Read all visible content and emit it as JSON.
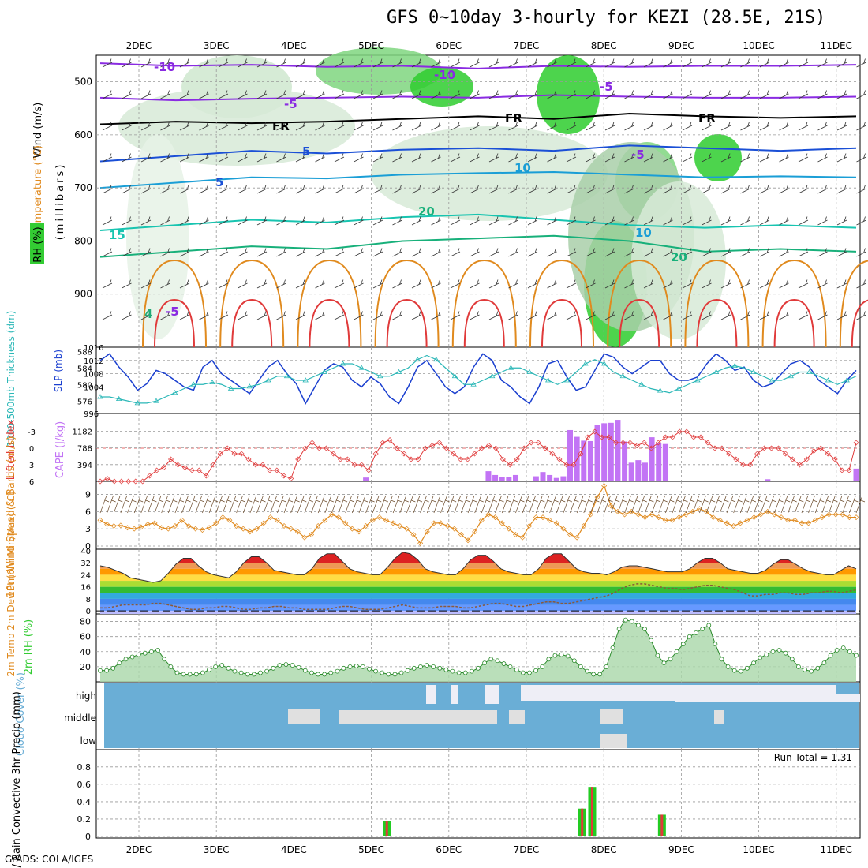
{
  "title": "GFS 0~10day 3-hourly for KEZI (28.5E, 21S)",
  "footer": "GrADS: COLA/IGES",
  "colors": {
    "rh_green": "#33cc33",
    "temp_orange": "#e08a1e",
    "slp_blue": "#1a3fcf",
    "thickness_cyan": "#2ab7b7",
    "cape_purple": "#c274f5",
    "lifted_red": "#e03a3a",
    "wind_orange": "#e08a1e",
    "cloud_blue": "#6aaed6",
    "precip_green": "#22cc22",
    "precip_red": "#e03a3a"
  },
  "chart_data": [
    {
      "type": "heatmap",
      "panel": "upper-air",
      "ylabels": [
        "Wind (m/s)",
        "Temperature (°C)",
        "RH (%)",
        "(millibars)"
      ],
      "yticks": [
        500,
        600,
        700,
        800,
        900
      ],
      "ylim": [
        1000,
        450
      ],
      "x_top_labels": [
        "2DEC",
        "3DEC",
        "4DEC",
        "5DEC",
        "6DEC",
        "7DEC",
        "8DEC",
        "9DEC",
        "10DEC",
        "11DEC"
      ],
      "contour_labels": [
        "-10",
        "-10",
        "-5",
        "FR",
        "FR",
        "FR",
        "-5",
        "5",
        "-5",
        "10",
        "5",
        "10",
        "15",
        "20",
        "20",
        "-5",
        "4"
      ],
      "isotherms": [
        {
          "label": "-10",
          "p": [
            465,
            470,
            468,
            472,
            470,
            475,
            470,
            472,
            470,
            470,
            468
          ]
        },
        {
          "label": "-5",
          "p": [
            530,
            535,
            532,
            530,
            528,
            530,
            525,
            528,
            530,
            530,
            528
          ]
        },
        {
          "label": "FR",
          "p": [
            580,
            575,
            578,
            575,
            570,
            565,
            570,
            560,
            565,
            568,
            565
          ]
        },
        {
          "label": "5",
          "p": [
            650,
            640,
            630,
            635,
            628,
            625,
            630,
            620,
            625,
            630,
            625
          ]
        },
        {
          "label": "10",
          "p": [
            700,
            690,
            680,
            682,
            675,
            672,
            670,
            675,
            680,
            678,
            680
          ]
        },
        {
          "label": "15",
          "p": [
            780,
            770,
            760,
            765,
            755,
            750,
            760,
            770,
            775,
            770,
            775
          ]
        },
        {
          "label": "20",
          "p": [
            830,
            820,
            810,
            815,
            800,
            795,
            790,
            800,
            820,
            815,
            820
          ]
        }
      ]
    },
    {
      "type": "line",
      "panel": "slp-thickness",
      "ylabel_left": "1000-500mb Thickness (dm)",
      "ylabel_right": "SLP (mb)",
      "yticks_left": [
        576,
        580,
        584,
        588
      ],
      "yticks_right": [
        996,
        1004,
        1008,
        1012,
        1016
      ],
      "series": [
        {
          "name": "SLP (mb)",
          "values": [
            1012,
            1014,
            1010,
            1007,
            1003,
            1005,
            1009,
            1008,
            1006,
            1004,
            1003,
            1010,
            1012,
            1008,
            1006,
            1004,
            1002,
            1006,
            1010,
            1012,
            1008,
            1005,
            999,
            1004,
            1009,
            1011,
            1010,
            1006,
            1004,
            1007,
            1005,
            1001,
            999,
            1004,
            1010,
            1012,
            1008,
            1004,
            1002,
            1004,
            1010,
            1014,
            1012,
            1006,
            1004,
            1001,
            999,
            1004,
            1011,
            1012,
            1007,
            1003,
            1004,
            1009,
            1014,
            1013,
            1010,
            1008,
            1010,
            1012,
            1012,
            1008,
            1006,
            1006,
            1007,
            1011,
            1014,
            1012,
            1009,
            1010,
            1006,
            1004,
            1005,
            1008,
            1011,
            1012,
            1010,
            1006,
            1004,
            1002,
            1006,
            1009
          ]
        },
        {
          "name": "Thickness (dm)",
          "values": [
            577,
            577,
            576.5,
            576,
            575.5,
            575.5,
            576,
            577,
            578,
            579,
            580,
            580,
            580.5,
            580,
            579,
            579,
            579.5,
            580,
            581,
            582,
            582,
            581,
            581,
            582,
            583,
            584,
            585,
            585,
            584,
            583,
            582,
            582,
            583,
            584,
            586,
            587,
            586,
            584,
            582,
            580,
            580,
            581,
            582,
            583,
            584,
            584,
            583,
            582,
            581,
            580,
            581,
            583,
            585,
            586,
            585,
            583,
            582,
            581,
            580,
            579,
            578.5,
            578,
            579,
            580,
            581,
            582,
            583,
            584,
            584.5,
            584,
            583,
            582,
            581,
            581,
            582,
            583,
            583,
            582,
            581,
            580,
            581,
            582
          ]
        }
      ]
    },
    {
      "type": "bar",
      "panel": "cape-li",
      "ylabel_left": "Lifted Index",
      "ylabel_right": "CAPE (J/kg)",
      "yticks_left": [
        -3,
        0,
        3,
        6
      ],
      "yticks_right": [
        394,
        788,
        1182
      ],
      "series": [
        {
          "name": "CAPE (J/kg)",
          "values": [
            20,
            0,
            0,
            0,
            0,
            0,
            0,
            0,
            0,
            0,
            0,
            0,
            0,
            0,
            0,
            0,
            0,
            0,
            0,
            0,
            0,
            0,
            0,
            0,
            0,
            0,
            0,
            0,
            0,
            0,
            0,
            0,
            0,
            0,
            0,
            0,
            0,
            0,
            0,
            90,
            0,
            0,
            0,
            0,
            0,
            0,
            0,
            0,
            0,
            0,
            0,
            0,
            0,
            0,
            0,
            0,
            0,
            240,
            150,
            100,
            100,
            150,
            0,
            0,
            120,
            220,
            150,
            80,
            120,
            1210,
            1050,
            960,
            950,
            1330,
            1370,
            1380,
            1450,
            940,
            440,
            500,
            440,
            1040,
            910,
            880,
            0,
            0,
            0,
            0,
            0,
            0,
            0,
            0,
            0,
            0,
            0,
            0,
            0,
            0,
            50,
            0,
            0,
            0,
            0,
            0,
            0,
            0,
            0,
            0,
            0,
            0,
            0,
            300
          ]
        },
        {
          "name": "Lifted Index",
          "values": [
            6,
            5.5,
            6,
            6,
            6,
            6,
            6,
            5,
            4,
            3.5,
            2,
            3,
            3.5,
            4,
            4,
            5,
            3,
            1,
            0,
            1,
            1,
            2,
            3,
            3,
            4,
            4,
            5,
            5.5,
            2,
            0,
            -1,
            0,
            0,
            1,
            2,
            2,
            3,
            3,
            4,
            1,
            -1,
            -1.5,
            0,
            1,
            2,
            2,
            0,
            -0.5,
            -1,
            0,
            1,
            2,
            2,
            1,
            0,
            -0.5,
            0,
            2,
            3,
            2,
            0,
            -1,
            -1,
            0,
            1,
            2,
            3,
            3,
            1,
            -2,
            -3,
            -2,
            -2,
            -1,
            -1,
            -1,
            -0.5,
            -1,
            0,
            -1,
            -2,
            -2,
            -3,
            -3,
            -2,
            -2,
            -1,
            0,
            0,
            1,
            2,
            3,
            3,
            1,
            0,
            0,
            0,
            1,
            2,
            3,
            2,
            0.5,
            0,
            1,
            2,
            4,
            4,
            -1
          ]
        }
      ]
    },
    {
      "type": "line",
      "panel": "wind10m",
      "ylabel": "10m Wind Speed & Barbs (m/s)",
      "yticks": [
        0,
        3,
        6,
        9
      ],
      "ylim": [
        0,
        11
      ],
      "series": [
        {
          "name": "10m Wind Speed",
          "values": [
            4.5,
            3.8,
            3.5,
            3.6,
            3.2,
            3.0,
            3.3,
            3.8,
            4.0,
            3.2,
            3.0,
            3.5,
            4.5,
            3.5,
            3.0,
            2.8,
            3.2,
            4.0,
            5.0,
            4.5,
            3.5,
            3.0,
            2.5,
            3.0,
            4.0,
            5.0,
            4.5,
            3.5,
            3.0,
            2.5,
            1.5,
            2.0,
            3.5,
            4.5,
            5.5,
            5.0,
            4.0,
            3.0,
            2.5,
            3.5,
            4.5,
            5.0,
            4.5,
            4.0,
            3.5,
            3.0,
            2.0,
            0.5,
            2.5,
            4.0,
            4.0,
            3.5,
            3.0,
            2.0,
            1.0,
            2.5,
            4.5,
            5.5,
            5.0,
            4.0,
            3.0,
            2.0,
            1.5,
            3.5,
            5.0,
            5.0,
            4.5,
            4.0,
            3.0,
            2.0,
            1.5,
            3.5,
            5.5,
            8.5,
            10.5,
            7.0,
            6.0,
            5.5,
            6.0,
            5.5,
            5.0,
            5.5,
            5.0,
            4.5,
            4.5,
            5.0,
            5.5,
            6.0,
            6.5,
            6.0,
            5.0,
            4.5,
            4.0,
            3.5,
            4.0,
            4.5,
            5.0,
            5.5,
            6.0,
            5.5,
            5.0,
            4.5,
            4.5,
            4.0,
            4.0,
            4.5,
            5.0,
            5.5,
            5.5,
            5.5,
            5.0,
            5.0
          ]
        }
      ]
    },
    {
      "type": "area",
      "panel": "temp2m",
      "ylabel": "2m Temp 2m DewPt (6hr Min/Max) (°C)",
      "yticks": [
        0,
        8,
        16,
        24,
        32,
        40
      ],
      "ylim": [
        -2,
        41
      ],
      "series": [
        {
          "name": "2m Temp",
          "values": [
            30,
            29,
            27,
            25,
            22,
            21,
            20,
            19,
            20,
            25,
            31,
            35,
            35,
            30,
            26,
            24,
            23,
            22,
            26,
            32,
            36,
            36,
            32,
            27,
            26,
            25,
            24,
            24,
            28,
            35,
            38,
            38,
            33,
            28,
            26,
            25,
            24,
            24,
            29,
            35,
            39,
            38,
            34,
            28,
            26,
            25,
            24,
            24,
            28,
            34,
            37,
            37,
            33,
            28,
            26,
            25,
            24,
            24,
            28,
            35,
            38,
            38,
            33,
            28,
            26,
            25,
            25,
            24,
            26,
            29,
            30,
            30,
            29,
            28,
            27,
            26,
            26,
            26,
            28,
            32,
            35,
            35,
            32,
            28,
            27,
            26,
            25,
            25,
            27,
            31,
            34,
            34,
            31,
            28,
            26,
            25,
            24,
            24,
            27,
            30,
            28
          ]
        },
        {
          "name": "2m DewPt",
          "values": [
            2,
            2,
            3,
            4,
            4,
            4,
            4,
            5,
            5,
            4,
            3,
            2,
            1,
            1,
            2,
            2,
            3,
            3,
            2,
            1,
            1,
            2,
            2,
            3,
            3,
            2,
            2,
            1,
            1,
            1,
            1,
            2,
            3,
            3,
            2,
            1,
            1,
            1,
            2,
            3,
            4,
            3,
            2,
            2,
            2,
            3,
            3,
            3,
            2,
            2,
            3,
            4,
            5,
            5,
            4,
            3,
            3,
            4,
            5,
            6,
            6,
            5,
            5,
            6,
            7,
            8,
            9,
            10,
            12,
            15,
            17,
            18,
            18,
            17,
            16,
            15,
            15,
            14,
            15,
            16,
            17,
            17,
            16,
            15,
            14,
            12,
            10,
            10,
            11,
            11,
            12,
            12,
            11,
            11,
            12,
            12,
            13,
            13,
            12,
            13,
            14
          ]
        }
      ]
    },
    {
      "type": "area",
      "panel": "rh2m",
      "ylabel": "2m RH (%)",
      "yticks": [
        20,
        40,
        60,
        80
      ],
      "ylim": [
        0,
        90
      ],
      "series": [
        {
          "name": "2m RH",
          "values": [
            15,
            15,
            18,
            25,
            30,
            33,
            36,
            38,
            40,
            42,
            30,
            20,
            12,
            10,
            10,
            10,
            12,
            16,
            20,
            22,
            18,
            14,
            12,
            10,
            10,
            12,
            14,
            18,
            22,
            23,
            22,
            19,
            15,
            12,
            10,
            10,
            12,
            14,
            18,
            20,
            21,
            20,
            17,
            14,
            12,
            10,
            10,
            12,
            15,
            18,
            20,
            22,
            20,
            18,
            16,
            14,
            12,
            12,
            14,
            18,
            25,
            30,
            28,
            24,
            20,
            16,
            12,
            12,
            15,
            20,
            30,
            35,
            36,
            34,
            28,
            20,
            14,
            10,
            10,
            20,
            45,
            70,
            82,
            80,
            75,
            70,
            55,
            35,
            25,
            30,
            40,
            50,
            60,
            65,
            70,
            75,
            50,
            30,
            20,
            15,
            14,
            18,
            25,
            32,
            36,
            40,
            42,
            38,
            30,
            20,
            16,
            14,
            18,
            25,
            35,
            42,
            45,
            40,
            35
          ]
        }
      ]
    },
    {
      "type": "heatmap",
      "panel": "cloud",
      "ylabel": "Cloud Cover (%)",
      "levels": [
        "high",
        "middle",
        "low"
      ]
    },
    {
      "type": "bar",
      "panel": "precip",
      "ylabel": "Total / Rain Convective 3hr Precip (mm)",
      "yticks": [
        0,
        0.2,
        0.4,
        0.6,
        0.8
      ],
      "ylim": [
        0,
        0.98
      ],
      "run_total": "Run Total = 1.31",
      "bars": [
        {
          "x": 5.2,
          "total": 0.18
        },
        {
          "x": 7.72,
          "total": 0.32
        },
        {
          "x": 7.85,
          "total": 0.57
        },
        {
          "x": 8.75,
          "total": 0.25
        }
      ],
      "x_bottom_labels": [
        "2DEC",
        "3DEC",
        "4DEC",
        "5DEC",
        "6DEC",
        "7DEC",
        "8DEC",
        "9DEC",
        "10DEC",
        "11DEC"
      ]
    }
  ]
}
